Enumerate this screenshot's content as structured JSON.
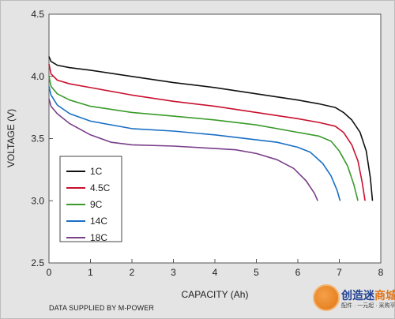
{
  "chart_data": {
    "type": "line",
    "xlabel": "CAPACITY (Ah)",
    "ylabel": "VOLTAGE (V)",
    "xlim": [
      0,
      8
    ],
    "ylim": [
      2.5,
      4.5
    ],
    "x_ticks": [
      "0",
      "1",
      "2",
      "3",
      "4",
      "5",
      "6",
      "7",
      "8"
    ],
    "y_ticks": [
      "2.5",
      "3.0",
      "3.5",
      "4.0",
      "4.5"
    ],
    "grid": false,
    "legend_position": "bottom-left",
    "series": [
      {
        "name": "1C",
        "color": "#111111",
        "x": [
          0,
          0.05,
          0.2,
          0.5,
          1,
          2,
          3,
          4,
          5,
          6,
          6.5,
          6.9,
          7.1,
          7.3,
          7.5,
          7.65,
          7.75,
          7.8
        ],
        "y": [
          4.16,
          4.12,
          4.09,
          4.07,
          4.05,
          4.0,
          3.95,
          3.91,
          3.86,
          3.81,
          3.78,
          3.75,
          3.71,
          3.65,
          3.55,
          3.4,
          3.18,
          3.0
        ]
      },
      {
        "name": "4.5C",
        "color": "#c8102e",
        "x": [
          0,
          0.05,
          0.2,
          0.5,
          1,
          2,
          3,
          4,
          5,
          6,
          6.5,
          6.9,
          7.1,
          7.3,
          7.45,
          7.55,
          7.62
        ],
        "y": [
          4.1,
          4.02,
          3.97,
          3.94,
          3.91,
          3.85,
          3.8,
          3.76,
          3.71,
          3.66,
          3.63,
          3.6,
          3.55,
          3.45,
          3.32,
          3.15,
          3.0
        ]
      },
      {
        "name": "9C",
        "color": "#3a9a2a",
        "x": [
          0,
          0.05,
          0.2,
          0.5,
          1,
          2,
          3,
          4,
          5,
          6,
          6.5,
          6.8,
          7.0,
          7.2,
          7.35,
          7.45
        ],
        "y": [
          4.0,
          3.92,
          3.86,
          3.81,
          3.76,
          3.71,
          3.68,
          3.65,
          3.61,
          3.55,
          3.52,
          3.48,
          3.4,
          3.28,
          3.13,
          3.0
        ]
      },
      {
        "name": "14C",
        "color": "#1a6fc4",
        "x": [
          0,
          0.05,
          0.2,
          0.5,
          1,
          2,
          3,
          4,
          5,
          5.5,
          6,
          6.3,
          6.6,
          6.8,
          6.95,
          7.02
        ],
        "y": [
          3.92,
          3.85,
          3.77,
          3.7,
          3.64,
          3.58,
          3.56,
          3.53,
          3.49,
          3.47,
          3.43,
          3.39,
          3.3,
          3.2,
          3.08,
          3.0
        ]
      },
      {
        "name": "18C",
        "color": "#7a3e8a",
        "x": [
          0,
          0.05,
          0.2,
          0.5,
          1,
          1.5,
          2,
          3,
          4,
          4.5,
          5,
          5.5,
          5.9,
          6.2,
          6.4,
          6.48
        ],
        "y": [
          3.82,
          3.76,
          3.7,
          3.62,
          3.53,
          3.47,
          3.45,
          3.44,
          3.42,
          3.41,
          3.38,
          3.33,
          3.26,
          3.16,
          3.06,
          3.0
        ]
      }
    ]
  },
  "footer": {
    "source": "DATA SUPPLIED BY M-POWER"
  },
  "watermark": {
    "title_part1": "创造迷",
    "title_part2": "商城",
    "subtitle": "配件 · 一元起 · 采购平台"
  }
}
